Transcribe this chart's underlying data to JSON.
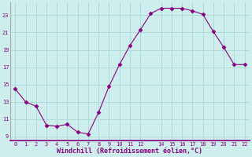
{
  "x": [
    0,
    1,
    2,
    3,
    4,
    5,
    6,
    7,
    8,
    9,
    10,
    11,
    12,
    13,
    14,
    15,
    16,
    17,
    18,
    19,
    20,
    21,
    22
  ],
  "y": [
    14.5,
    13.0,
    12.5,
    10.3,
    10.2,
    10.4,
    9.5,
    9.3,
    11.8,
    14.8,
    17.3,
    19.5,
    21.3,
    23.2,
    23.8,
    23.8,
    23.8,
    23.5,
    23.1,
    21.1,
    19.3,
    17.3,
    17.3
  ],
  "line_color": "#880088",
  "marker": "D",
  "marker_size": 2.5,
  "bg_color": "#cdeeed",
  "grid_color": "#aad8d5",
  "xlabel": "Windchill (Refroidissement éolien,°C)",
  "xlabel_color": "#880088",
  "tick_color": "#880088",
  "xlim": [
    -0.5,
    22.5
  ],
  "ylim": [
    8.5,
    24.5
  ],
  "yticks": [
    9,
    11,
    13,
    15,
    17,
    19,
    21,
    23
  ],
  "xticks": [
    0,
    1,
    2,
    3,
    4,
    5,
    6,
    7,
    8,
    9,
    10,
    11,
    12,
    14,
    15,
    16,
    17,
    18,
    19,
    20,
    21,
    22
  ],
  "left_spine_color": "#aaaaaa",
  "bottom_spine_color": "#880088"
}
